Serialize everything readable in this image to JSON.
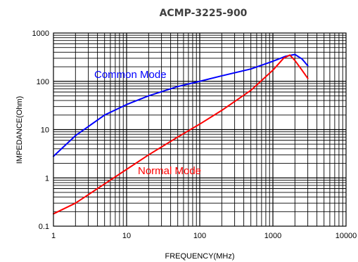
{
  "chart_data": {
    "type": "line",
    "title": "ACMP-3225-900",
    "xlabel": "FREQUENCY(MHz)",
    "ylabel": "IMPEDANCE(Ohm)",
    "x_scale": "log",
    "y_scale": "log",
    "xlim": [
      1,
      10000
    ],
    "ylim": [
      0.1,
      1000
    ],
    "x_ticks": [
      1,
      10,
      100,
      1000,
      10000
    ],
    "x_tick_labels": [
      "1",
      "10",
      "100",
      "1000",
      "10000"
    ],
    "y_ticks": [
      0.1,
      1,
      10,
      100,
      1000
    ],
    "y_tick_labels": [
      "0.1",
      "1",
      "10",
      "100",
      "1000"
    ],
    "grid": true,
    "legend": "inline",
    "series": [
      {
        "name": "Common Mode",
        "color": "#0000ff",
        "x": [
          1,
          2,
          5,
          10,
          20,
          50,
          100,
          200,
          500,
          1000,
          1500,
          2000,
          2500,
          3000
        ],
        "y": [
          2.8,
          7.5,
          20,
          33,
          50,
          78,
          100,
          130,
          180,
          260,
          330,
          360,
          290,
          210
        ]
      },
      {
        "name": "Normal Mode",
        "color": "#ff0000",
        "x": [
          1,
          2,
          5,
          10,
          20,
          50,
          100,
          200,
          500,
          1000,
          1400,
          1700,
          2000,
          2500,
          3000
        ],
        "y": [
          0.18,
          0.3,
          0.75,
          1.5,
          3,
          7,
          13,
          25,
          65,
          170,
          300,
          350,
          270,
          170,
          115
        ]
      }
    ]
  }
}
